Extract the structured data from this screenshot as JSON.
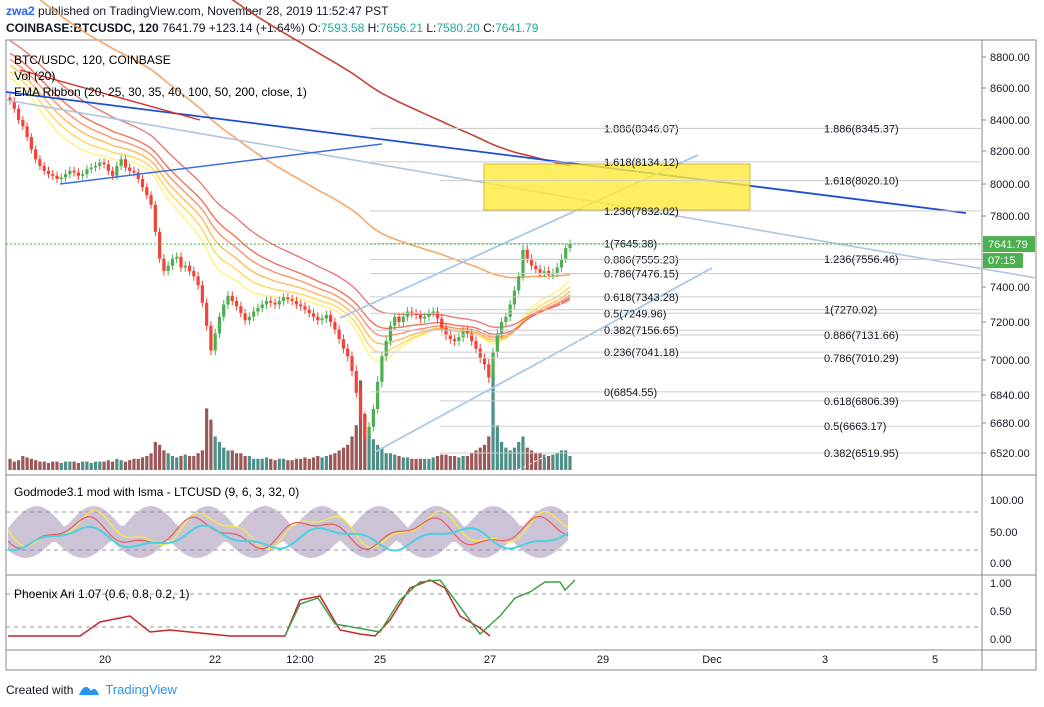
{
  "header": {
    "author": "zwa2",
    "published": "published on TradingView.com, November 28, 2019 11:52:47 PST",
    "symbol": "COINBASE:BTCUSDC, 120",
    "last": "7641.79",
    "change": "+123.14 (+1.64%)",
    "o_label": "O:",
    "o": "7593.58",
    "h_label": "H:",
    "h": "7656.21",
    "l_label": "L:",
    "l": "7580.20",
    "c_label": "C:",
    "c": "7641.79"
  },
  "legend": {
    "line1": "BTC/USDC, 120, COINBASE",
    "line2": "Vol (20)",
    "line3": "EMA Ribbon (20, 25, 30, 35, 40, 100, 50, 200, close, 1)"
  },
  "osc_label": "Godmode3.1 mod with lsma - LTCUSD (9, 6, 3, 32, 0)",
  "phoenix_label": "Phoenix Ari 1.07 (0.6, 0.8, 0.2, 1)",
  "footer": {
    "created": "Created with",
    "brand": "TradingView"
  },
  "colors": {
    "up": "#26a69a",
    "down": "#ef5350",
    "green_candle": "#4caf50",
    "red_candle": "#f44336",
    "price_tag": "#4caf50",
    "fib_box": "#ffeb3b",
    "trend_blue": "#1e4fd0",
    "channel": "#a8c8e8"
  },
  "chart_data": [
    {
      "type": "candlestick",
      "title": "BTC/USDC, 120, COINBASE",
      "y_axis_ticks": [
        8800,
        8600,
        8400,
        8200,
        8000,
        7800,
        7400,
        7200,
        7000,
        6840,
        6680,
        6520
      ],
      "y_axis_tick_labels": [
        "8800.00",
        "8600.00",
        "8400.00",
        "8200.00",
        "8000.00",
        "7800.00",
        "7400.00",
        "7200.00",
        "7000.00",
        "6840.00",
        "6680.00",
        "6520.00"
      ],
      "x_axis_labels": [
        "20",
        "22",
        "12:00",
        "25",
        "27",
        "29",
        "Dec",
        "3",
        "5"
      ],
      "ylim": [
        6480,
        8860
      ],
      "last_price": 7641.79,
      "last_price_label": "7641.79",
      "countdown": "07:15",
      "fib_levels_upper": [
        {
          "ratio": "1.886",
          "price": "8346.07",
          "value": 8346.07
        },
        {
          "ratio": "1.618",
          "price": "8134.12",
          "value": 8134.12
        },
        {
          "ratio": "1.236",
          "price": "7832.02",
          "value": 7832.02
        },
        {
          "ratio": "1",
          "price": "7645.38",
          "value": 7645.38
        },
        {
          "ratio": "0.886",
          "price": "7555.23",
          "value": 7555.23
        },
        {
          "ratio": "0.786",
          "price": "7476.15",
          "value": 7476.15
        },
        {
          "ratio": "0.618",
          "price": "7343.28",
          "value": 7343.28
        },
        {
          "ratio": "0.5",
          "price": "7249.96",
          "value": 7249.96
        },
        {
          "ratio": "0.382",
          "price": "7156.65",
          "value": 7156.65
        },
        {
          "ratio": "0.236",
          "price": "7041.18",
          "value": 7041.18
        },
        {
          "ratio": "0",
          "price": "6854.55",
          "value": 6854.55
        }
      ],
      "fib_levels_right": [
        {
          "ratio": "1.886",
          "price": "8345.37",
          "value": 8345.37
        },
        {
          "ratio": "1.618",
          "price": "8020.10",
          "value": 8020.1
        },
        {
          "ratio": "1.236",
          "price": "7556.46",
          "value": 7556.46
        },
        {
          "ratio": "1",
          "price": "7270.02",
          "value": 7270.02
        },
        {
          "ratio": "0.886",
          "price": "7131.66",
          "value": 7131.66
        },
        {
          "ratio": "0.786",
          "price": "7010.29",
          "value": 7010.29
        },
        {
          "ratio": "0.618",
          "price": "6806.39",
          "value": 6806.39
        },
        {
          "ratio": "0.5",
          "price": "6663.17",
          "value": 6663.17
        },
        {
          "ratio": "0.382",
          "price": "6519.95",
          "value": 6519.95
        }
      ],
      "candles_close": [
        8520,
        8470,
        8400,
        8360,
        8290,
        8210,
        8150,
        8110,
        8080,
        8060,
        8050,
        8030,
        8040,
        8060,
        8080,
        8070,
        8050,
        8060,
        8090,
        8100,
        8110,
        8130,
        8120,
        8080,
        8050,
        8110,
        8150,
        8100,
        8080,
        8070,
        8030,
        7980,
        7930,
        7870,
        7710,
        7560,
        7490,
        7520,
        7560,
        7570,
        7510,
        7520,
        7490,
        7460,
        7410,
        7310,
        7180,
        7050,
        7140,
        7230,
        7300,
        7350,
        7320,
        7290,
        7250,
        7210,
        7230,
        7260,
        7280,
        7300,
        7320,
        7310,
        7300,
        7320,
        7340,
        7330,
        7320,
        7300,
        7290,
        7270,
        7250,
        7230,
        7210,
        7220,
        7240,
        7200,
        7160,
        7110,
        7060,
        7020,
        6950,
        6850,
        6720,
        6610,
        6660,
        6760,
        6900,
        7020,
        7100,
        7180,
        7230,
        7200,
        7230,
        7260,
        7250,
        7240,
        7220,
        7230,
        7250,
        7260,
        7220,
        7170,
        7130,
        7110,
        7100,
        7120,
        7150,
        7140,
        7100,
        7060,
        7010,
        6980,
        6920,
        7040,
        7140,
        7200,
        7230,
        7300,
        7380,
        7460,
        7610,
        7560,
        7520,
        7500,
        7480,
        7490,
        7470,
        7480,
        7510,
        7560,
        7620,
        7641.79
      ],
      "volume_rel": [
        0.4,
        0.3,
        0.35,
        0.5,
        0.45,
        0.4,
        0.35,
        0.3,
        0.3,
        0.25,
        0.3,
        0.3,
        0.25,
        0.3,
        0.3,
        0.3,
        0.25,
        0.3,
        0.3,
        0.25,
        0.3,
        0.3,
        0.3,
        0.35,
        0.3,
        0.4,
        0.35,
        0.3,
        0.35,
        0.4,
        0.4,
        0.45,
        0.5,
        0.6,
        1.0,
        0.9,
        0.7,
        0.6,
        0.5,
        0.45,
        0.5,
        0.55,
        0.5,
        0.5,
        0.6,
        0.7,
        2.2,
        1.8,
        1.2,
        1.0,
        0.8,
        0.7,
        0.7,
        0.6,
        0.6,
        0.5,
        0.5,
        0.4,
        0.4,
        0.4,
        0.45,
        0.4,
        0.35,
        0.4,
        0.4,
        0.35,
        0.35,
        0.4,
        0.4,
        0.45,
        0.4,
        0.45,
        0.5,
        0.45,
        0.5,
        0.55,
        0.6,
        0.7,
        0.8,
        0.9,
        1.2,
        1.6,
        3.2,
        2.0,
        1.4,
        1.1,
        0.9,
        0.8,
        0.6,
        0.6,
        0.55,
        0.5,
        0.45,
        0.45,
        0.4,
        0.4,
        0.4,
        0.4,
        0.4,
        0.45,
        0.5,
        0.55,
        0.55,
        0.5,
        0.5,
        0.45,
        0.5,
        0.5,
        0.6,
        0.7,
        0.8,
        0.9,
        1.2,
        3.5,
        1.6,
        1.0,
        0.8,
        0.7,
        0.8,
        1.0,
        1.2,
        0.8,
        0.7,
        0.6,
        0.6,
        0.55,
        0.5,
        0.55,
        0.6,
        0.7,
        0.7,
        0.5
      ]
    },
    {
      "type": "line",
      "title": "Godmode3.1 mod with lsma - LTCUSD (9, 6, 3, 32, 0)",
      "y_axis_tick_labels": [
        "100.00",
        "50.00",
        "0.00"
      ],
      "ylim": [
        -15,
        118
      ]
    },
    {
      "type": "line",
      "title": "Phoenix Ari 1.07 (0.6, 0.8, 0.2, 1)",
      "y_axis_tick_labels": [
        "1.00",
        "0.50",
        "0.00"
      ],
      "ylim": [
        -0.1,
        1.08
      ]
    }
  ]
}
